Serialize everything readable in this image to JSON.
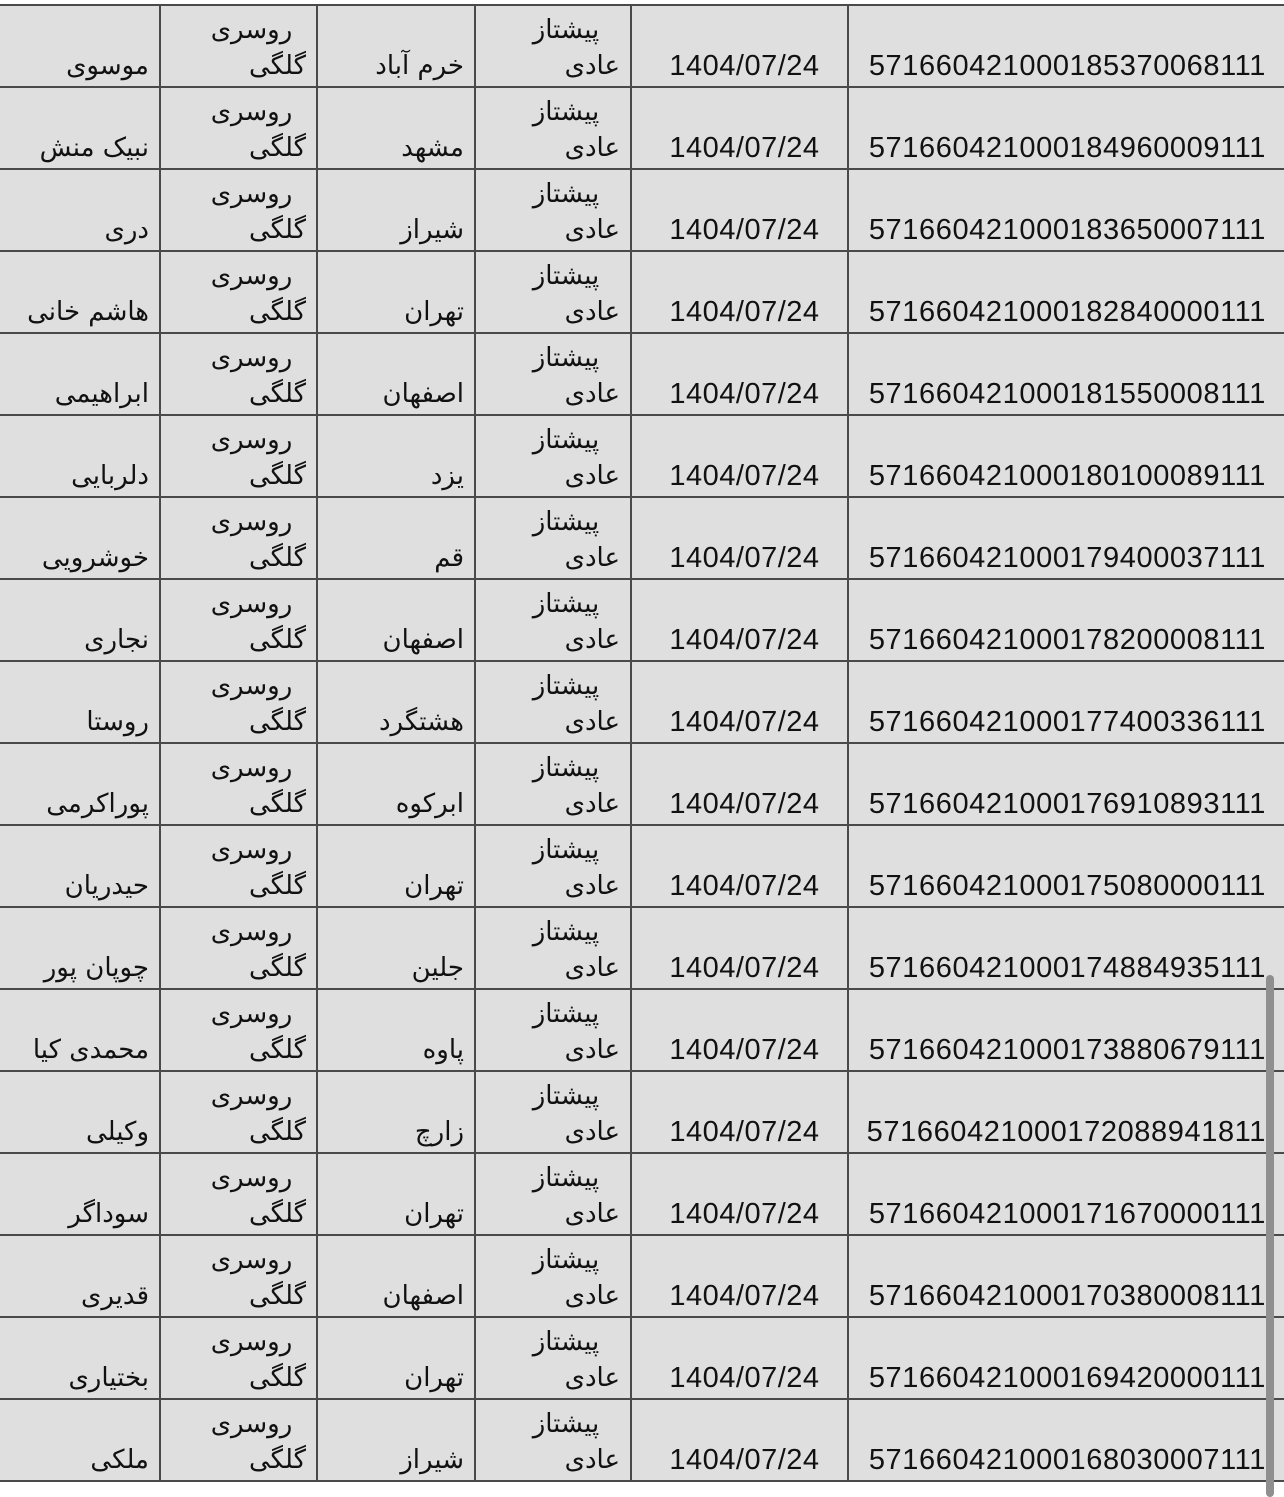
{
  "table": {
    "rows": [
      {
        "tracking": "571660421000185370068111",
        "date": "1404/07/24",
        "type_top": "پیشتاز",
        "type_bottom": "عادی",
        "city": "خرم آباد",
        "product_top": "روسری",
        "product_bottom": "گلگی",
        "name": "موسوی"
      },
      {
        "tracking": "571660421000184960009111",
        "date": "1404/07/24",
        "type_top": "پیشتاز",
        "type_bottom": "عادی",
        "city": "مشهد",
        "product_top": "روسری",
        "product_bottom": "گلگی",
        "name": "نبیک منش"
      },
      {
        "tracking": "571660421000183650007111",
        "date": "1404/07/24",
        "type_top": "پیشتاز",
        "type_bottom": "عادی",
        "city": "شیراز",
        "product_top": "روسری",
        "product_bottom": "گلگی",
        "name": "دری"
      },
      {
        "tracking": "571660421000182840000111",
        "date": "1404/07/24",
        "type_top": "پیشتاز",
        "type_bottom": "عادی",
        "city": "تهران",
        "product_top": "روسری",
        "product_bottom": "گلگی",
        "name": "هاشم خانی"
      },
      {
        "tracking": "571660421000181550008111",
        "date": "1404/07/24",
        "type_top": "پیشتاز",
        "type_bottom": "عادی",
        "city": "اصفهان",
        "product_top": "روسری",
        "product_bottom": "گلگی",
        "name": "ابراهیمی"
      },
      {
        "tracking": "571660421000180100089111",
        "date": "1404/07/24",
        "type_top": "پیشتاز",
        "type_bottom": "عادی",
        "city": "یزد",
        "product_top": "روسری",
        "product_bottom": "گلگی",
        "name": "دلربایی"
      },
      {
        "tracking": "571660421000179400037111",
        "date": "1404/07/24",
        "type_top": "پیشتاز",
        "type_bottom": "عادی",
        "city": "قم",
        "product_top": "روسری",
        "product_bottom": "گلگی",
        "name": "خوشرویی"
      },
      {
        "tracking": "571660421000178200008111",
        "date": "1404/07/24",
        "type_top": "پیشتاز",
        "type_bottom": "عادی",
        "city": "اصفهان",
        "product_top": "روسری",
        "product_bottom": "گلگی",
        "name": "نجاری"
      },
      {
        "tracking": "571660421000177400336111",
        "date": "1404/07/24",
        "type_top": "پیشتاز",
        "type_bottom": "عادی",
        "city": "هشتگرد",
        "product_top": "روسری",
        "product_bottom": "گلگی",
        "name": "روستا"
      },
      {
        "tracking": "571660421000176910893111",
        "date": "1404/07/24",
        "type_top": "پیشتاز",
        "type_bottom": "عادی",
        "city": "ابرکوه",
        "product_top": "روسری",
        "product_bottom": "گلگی",
        "name": "پوراکرمی"
      },
      {
        "tracking": "571660421000175080000111",
        "date": "1404/07/24",
        "type_top": "پیشتاز",
        "type_bottom": "عادی",
        "city": "تهران",
        "product_top": "روسری",
        "product_bottom": "گلگی",
        "name": "حیدریان"
      },
      {
        "tracking": "571660421000174884935111",
        "date": "1404/07/24",
        "type_top": "پیشتاز",
        "type_bottom": "عادی",
        "city": "جلین",
        "product_top": "روسری",
        "product_bottom": "گلگی",
        "name": "چوپان پور"
      },
      {
        "tracking": "571660421000173880679111",
        "date": "1404/07/24",
        "type_top": "پیشتاز",
        "type_bottom": "عادی",
        "city": "پاوه",
        "product_top": "روسری",
        "product_bottom": "گلگی",
        "name": "محمدی کیا"
      },
      {
        "tracking": "571660421000172088941811",
        "date": "1404/07/24",
        "type_top": "پیشتاز",
        "type_bottom": "عادی",
        "city": "زارچ",
        "product_top": "روسری",
        "product_bottom": "گلگی",
        "name": "وکیلی"
      },
      {
        "tracking": "571660421000171670000111",
        "date": "1404/07/24",
        "type_top": "پیشتاز",
        "type_bottom": "عادی",
        "city": "تهران",
        "product_top": "روسری",
        "product_bottom": "گلگی",
        "name": "سوداگر"
      },
      {
        "tracking": "571660421000170380008111",
        "date": "1404/07/24",
        "type_top": "پیشتاز",
        "type_bottom": "عادی",
        "city": "اصفهان",
        "product_top": "روسری",
        "product_bottom": "گلگی",
        "name": "قدیری"
      },
      {
        "tracking": "571660421000169420000111",
        "date": "1404/07/24",
        "type_top": "پیشتاز",
        "type_bottom": "عادی",
        "city": "تهران",
        "product_top": "روسری",
        "product_bottom": "گلگی",
        "name": "بختیاری"
      },
      {
        "tracking": "571660421000168030007111",
        "date": "1404/07/24",
        "type_top": "پیشتاز",
        "type_bottom": "عادی",
        "city": "شیراز",
        "product_top": "روسری",
        "product_bottom": "گلگی",
        "name": "ملکی"
      }
    ]
  },
  "colors": {
    "background": "#dfdfdf",
    "grid": "#4a4a4a",
    "text": "#111111",
    "scrollbar": "#8f8f8f"
  }
}
